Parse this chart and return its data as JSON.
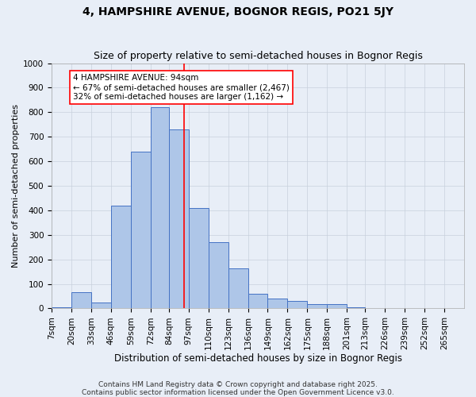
{
  "title": "4, HAMPSHIRE AVENUE, BOGNOR REGIS, PO21 5JY",
  "subtitle": "Size of property relative to semi-detached houses in Bognor Regis",
  "xlabel": "Distribution of semi-detached houses by size in Bognor Regis",
  "ylabel": "Number of semi-detached properties",
  "bin_labels": [
    "7sqm",
    "20sqm",
    "33sqm",
    "46sqm",
    "59sqm",
    "72sqm",
    "84sqm",
    "97sqm",
    "110sqm",
    "123sqm",
    "136sqm",
    "149sqm",
    "162sqm",
    "175sqm",
    "188sqm",
    "201sqm",
    "213sqm",
    "226sqm",
    "239sqm",
    "252sqm",
    "265sqm"
  ],
  "bin_edges": [
    7,
    20,
    33,
    46,
    59,
    72,
    84,
    97,
    110,
    123,
    136,
    149,
    162,
    175,
    188,
    201,
    213,
    226,
    239,
    252,
    265,
    278
  ],
  "bar_heights": [
    5,
    65,
    25,
    420,
    640,
    820,
    730,
    410,
    270,
    165,
    60,
    40,
    30,
    18,
    18,
    5,
    0,
    0,
    0,
    0,
    3
  ],
  "bar_color": "#aec6e8",
  "bar_edge_color": "#4472c4",
  "property_value": 94,
  "vline_color": "red",
  "annotation_line1": "4 HAMPSHIRE AVENUE: 94sqm",
  "annotation_line2": "← 67% of semi-detached houses are smaller (2,467)",
  "annotation_line3": "32% of semi-detached houses are larger (1,162) →",
  "annotation_box_color": "white",
  "annotation_box_edge_color": "red",
  "ylim": [
    0,
    1000
  ],
  "yticks": [
    0,
    100,
    200,
    300,
    400,
    500,
    600,
    700,
    800,
    900,
    1000
  ],
  "grid_color": "#c8d0dc",
  "background_color": "#e8eef7",
  "footer_text": "Contains HM Land Registry data © Crown copyright and database right 2025.\nContains public sector information licensed under the Open Government Licence v3.0.",
  "title_fontsize": 10,
  "subtitle_fontsize": 9,
  "xlabel_fontsize": 8.5,
  "ylabel_fontsize": 8,
  "tick_fontsize": 7.5,
  "annotation_fontsize": 7.5,
  "footer_fontsize": 6.5
}
